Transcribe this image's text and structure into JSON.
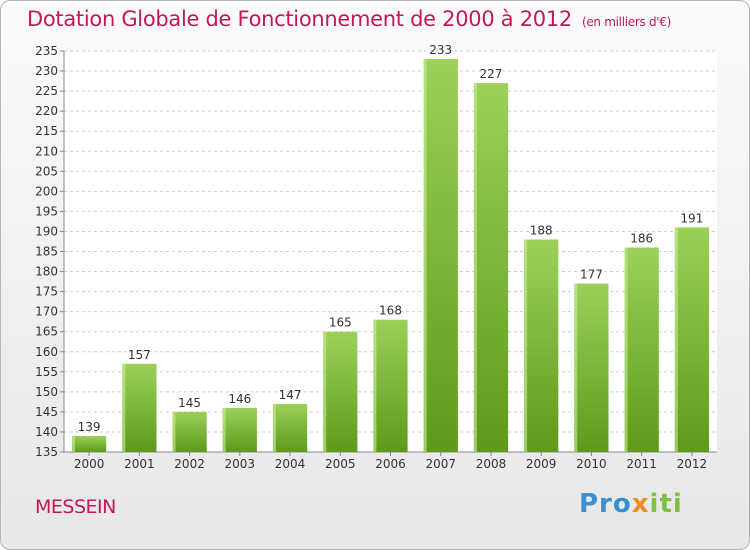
{
  "header": {
    "title": "Dotation Globale de Fonctionnement de 2000 à 2012",
    "unit": "(en milliers d'€)"
  },
  "footer": {
    "commune": "MESSEIN",
    "logo": {
      "part1": "Pro",
      "part2": "x",
      "part3": "iti"
    }
  },
  "colors": {
    "bar_light": "#9bd15a",
    "bar_dark": "#5d9a1a",
    "title": "#c2185b",
    "grid": "#cfcfcf"
  },
  "chart_data": {
    "type": "bar",
    "title": "Dotation Globale de Fonctionnement de 2000 à 2012",
    "subtitle": "(en milliers d'€)",
    "xlabel": "",
    "ylabel": "",
    "categories": [
      "2000",
      "2001",
      "2002",
      "2003",
      "2004",
      "2005",
      "2006",
      "2007",
      "2008",
      "2009",
      "2010",
      "2011",
      "2012"
    ],
    "values": [
      139,
      157,
      145,
      146,
      147,
      165,
      168,
      233,
      227,
      188,
      177,
      186,
      191
    ],
    "ylim": [
      135,
      235
    ],
    "ytick_step": 5,
    "grid": true
  }
}
